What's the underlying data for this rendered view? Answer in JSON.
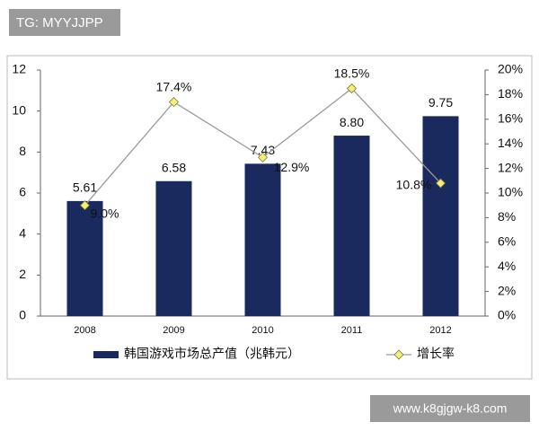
{
  "watermarks": [
    "TG: MYYJJPP",
    "www.k8gjgw-k8.com"
  ],
  "chart_data": {
    "type": "bar",
    "categories": [
      "2008",
      "2009",
      "2010",
      "2011",
      "2012"
    ],
    "series": [
      {
        "name": "韩国游戏市场总产值（兆韩元）",
        "type": "bar",
        "color": "#1b2a5e",
        "values": [
          5.61,
          6.58,
          7.43,
          8.8,
          9.75
        ],
        "value_labels": [
          "5.61",
          "6.58",
          "7.43",
          "8.80",
          "9.75"
        ]
      },
      {
        "name": "增长率",
        "type": "line",
        "axis": "y2",
        "color": "#9a9a9a",
        "marker_color": "#f2f07a",
        "values": [
          9.0,
          17.4,
          12.9,
          18.5,
          10.8
        ],
        "value_labels": [
          "9.0%",
          "17.4%",
          "12.9%",
          "18.5%",
          "10.8%"
        ]
      }
    ],
    "ylim": [
      0,
      12
    ],
    "yticks": [
      0,
      2,
      4,
      6,
      8,
      10,
      12
    ],
    "y2lim": [
      0,
      20
    ],
    "y2ticks": [
      {
        "value": 0,
        "label": "0%"
      },
      {
        "value": 2,
        "label": "2%"
      },
      {
        "value": 4,
        "label": "4%"
      },
      {
        "value": 6,
        "label": "6%"
      },
      {
        "value": 8,
        "label": "8%"
      },
      {
        "value": 10,
        "label": "10%"
      },
      {
        "value": 12,
        "label": "12%"
      },
      {
        "value": 14,
        "label": "14%"
      },
      {
        "value": 16,
        "label": "16%"
      },
      {
        "value": 18,
        "label": "18%"
      },
      {
        "value": 20,
        "label": "20%"
      }
    ],
    "grid": false,
    "legend": "bottom"
  }
}
